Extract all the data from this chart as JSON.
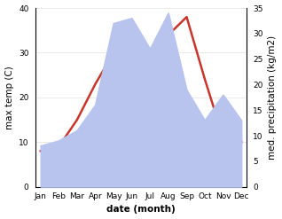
{
  "months": [
    "Jan",
    "Feb",
    "Mar",
    "Apr",
    "May",
    "Jun",
    "Jul",
    "Aug",
    "Sep",
    "Oct",
    "Nov",
    "Dec"
  ],
  "temp": [
    8,
    9,
    15,
    23,
    30,
    30,
    28,
    34,
    38,
    24,
    11,
    10
  ],
  "precip": [
    8,
    9,
    11,
    16,
    32,
    33,
    27,
    34,
    19,
    13,
    18,
    13
  ],
  "temp_color": "#c8352a",
  "precip_fill_color": "#b8c4ee",
  "precip_line_color": "#b8c4ee",
  "left_ylim": [
    0,
    40
  ],
  "right_ylim": [
    0,
    35
  ],
  "left_yticks": [
    0,
    10,
    20,
    30,
    40
  ],
  "right_yticks": [
    0,
    5,
    10,
    15,
    20,
    25,
    30,
    35
  ],
  "xlabel": "date (month)",
  "ylabel_left": "max temp (C)",
  "ylabel_right": "med. precipitation (kg/m2)",
  "bg_color": "#ffffff",
  "temp_linewidth": 1.8,
  "label_fontsize": 7.5,
  "tick_fontsize": 6.5
}
